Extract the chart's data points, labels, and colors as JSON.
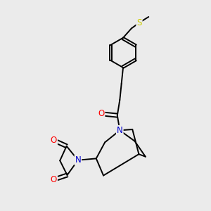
{
  "background_color": "#ebebeb",
  "fig_size": [
    3.0,
    3.0
  ],
  "dpi": 100,
  "atom_colors": {
    "C": "#000000",
    "N": "#0000cc",
    "O": "#ff0000",
    "S": "#cccc00"
  },
  "bond_color": "#000000",
  "bond_width": 1.4,
  "font_size_atom": 8.5
}
